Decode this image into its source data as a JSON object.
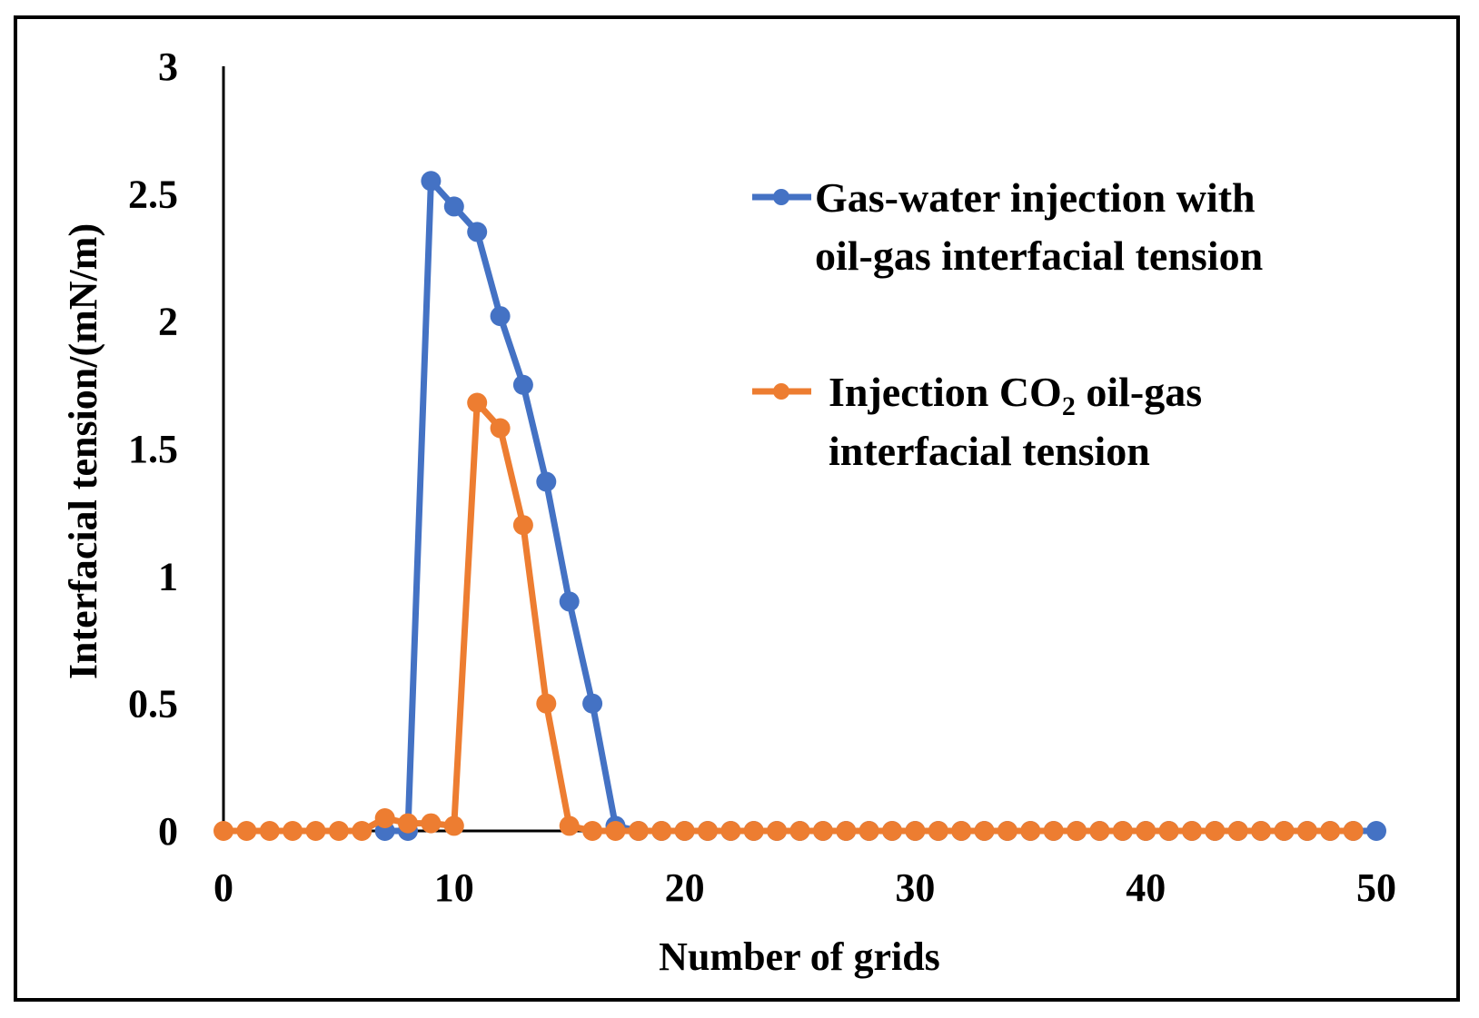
{
  "chart_data": {
    "type": "line",
    "title": "",
    "xlabel": "Number of grids",
    "ylabel": "Interfacial tension/(mN/m)",
    "xlim": [
      0,
      50
    ],
    "ylim": [
      0,
      3
    ],
    "xticks": [
      "0",
      "10",
      "20",
      "30",
      "40",
      "50"
    ],
    "yticks": [
      "0",
      "0.5",
      "1",
      "1.5",
      "2",
      "2.5",
      "3"
    ],
    "grid": false,
    "legend_position": "top-right",
    "series": [
      {
        "name": "Gas-water injection with oil-gas interfacial tension",
        "legend_lines": [
          "Gas-water injection with",
          "oil-gas interfacial tension"
        ],
        "color": "#4472C4",
        "points": [
          [
            7,
            0
          ],
          [
            8,
            0
          ],
          [
            9,
            2.55
          ],
          [
            10,
            2.45
          ],
          [
            11,
            2.35
          ],
          [
            12,
            2.02
          ],
          [
            13,
            1.75
          ],
          [
            14,
            1.37
          ],
          [
            15,
            0.9
          ],
          [
            16,
            0.5
          ],
          [
            17,
            0.02
          ],
          [
            18,
            0
          ],
          [
            19,
            0
          ],
          [
            20,
            0
          ],
          [
            21,
            0
          ],
          [
            22,
            0
          ],
          [
            23,
            0
          ],
          [
            24,
            0
          ],
          [
            25,
            0
          ],
          [
            26,
            0
          ],
          [
            27,
            0
          ],
          [
            28,
            0
          ],
          [
            29,
            0
          ],
          [
            30,
            0
          ],
          [
            31,
            0
          ],
          [
            32,
            0
          ],
          [
            33,
            0
          ],
          [
            34,
            0
          ],
          [
            35,
            0
          ],
          [
            36,
            0
          ],
          [
            37,
            0
          ],
          [
            38,
            0
          ],
          [
            39,
            0
          ],
          [
            40,
            0
          ],
          [
            41,
            0
          ],
          [
            42,
            0
          ],
          [
            43,
            0
          ],
          [
            44,
            0
          ],
          [
            45,
            0
          ],
          [
            46,
            0
          ],
          [
            47,
            0
          ],
          [
            48,
            0
          ],
          [
            49,
            0
          ],
          [
            50,
            0
          ]
        ]
      },
      {
        "name": "Injection CO2 oil-gas interfacial tension",
        "legend_line1_parts": [
          "Injection CO",
          "2",
          " oil-gas"
        ],
        "legend_line2": "interfacial tension",
        "color": "#ED7D31",
        "points": [
          [
            0,
            0
          ],
          [
            1,
            0
          ],
          [
            2,
            0
          ],
          [
            3,
            0
          ],
          [
            4,
            0
          ],
          [
            5,
            0
          ],
          [
            6,
            0
          ],
          [
            7,
            0.05
          ],
          [
            8,
            0.03
          ],
          [
            9,
            0.03
          ],
          [
            10,
            0.02
          ],
          [
            11,
            1.68
          ],
          [
            12,
            1.58
          ],
          [
            13,
            1.2
          ],
          [
            14,
            0.5
          ],
          [
            15,
            0.02
          ],
          [
            16,
            0
          ],
          [
            17,
            0
          ],
          [
            18,
            0
          ],
          [
            19,
            0
          ],
          [
            20,
            0
          ],
          [
            21,
            0
          ],
          [
            22,
            0
          ],
          [
            23,
            0
          ],
          [
            24,
            0
          ],
          [
            25,
            0
          ],
          [
            26,
            0
          ],
          [
            27,
            0
          ],
          [
            28,
            0
          ],
          [
            29,
            0
          ],
          [
            30,
            0
          ],
          [
            31,
            0
          ],
          [
            32,
            0
          ],
          [
            33,
            0
          ],
          [
            34,
            0
          ],
          [
            35,
            0
          ],
          [
            36,
            0
          ],
          [
            37,
            0
          ],
          [
            38,
            0
          ],
          [
            39,
            0
          ],
          [
            40,
            0
          ],
          [
            41,
            0
          ],
          [
            42,
            0
          ],
          [
            43,
            0
          ],
          [
            44,
            0
          ],
          [
            45,
            0
          ],
          [
            46,
            0
          ],
          [
            47,
            0
          ],
          [
            48,
            0
          ],
          [
            49,
            0
          ]
        ]
      }
    ]
  }
}
